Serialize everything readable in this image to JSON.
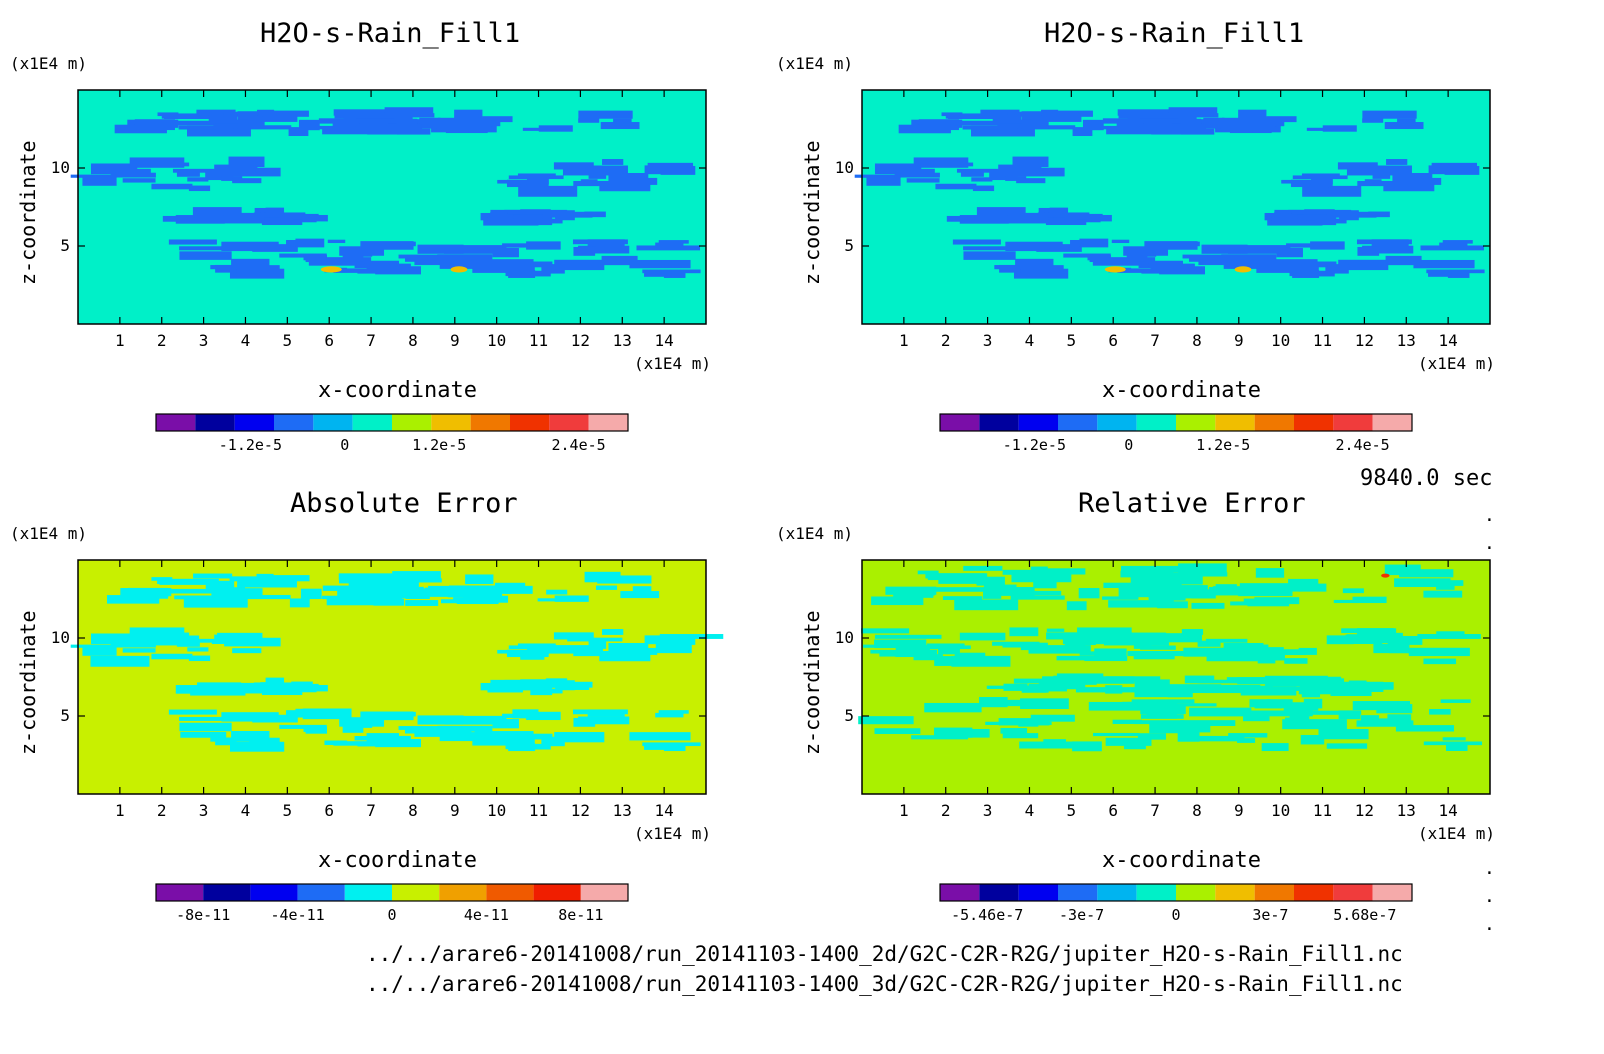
{
  "time_label": "9840.0 sec",
  "file_paths": [
    "../../arare6-20141008/run_20141103-1400_2d/G2C-C2R-R2G/jupiter_H2O-s-Rain_Fill1.nc",
    "../../arare6-20141008/run_20141103-1400_3d/G2C-C2R-R2G/jupiter_H2O-s-Rain_Fill1.nc"
  ],
  "colors": {
    "palette": [
      "#7a0ea8",
      "#00009e",
      "#0000f0",
      "#1e6cf5",
      "#00b4f0",
      "#00f0c8",
      "#aaf000",
      "#f0be00",
      "#f07800",
      "#f03200",
      "#f03c3c",
      "#f5aaaa"
    ],
    "palette_abs": [
      "#7a0ea8",
      "#00009e",
      "#0000f0",
      "#1e6cf5",
      "#00f0f0",
      "#c8f000",
      "#f0a000",
      "#f05a00",
      "#f01e00",
      "#f5aaaa"
    ],
    "patch_blue": "#1ea0f0",
    "patch_cyan": "#00f0f0",
    "field_abs": "#c8f000",
    "field_rel": "#aaf000"
  },
  "chart_data": [
    {
      "type": "heatmap",
      "title": "H2O-s-Rain_Fill1",
      "xlabel": "x-coordinate",
      "ylabel": "z-coordinate",
      "x_unit": "(x1E4 m)",
      "y_unit": "(x1E4 m)",
      "xlim": [
        0,
        15
      ],
      "ylim": [
        0,
        15
      ],
      "xticks": [
        "1",
        "2",
        "3",
        "4",
        "5",
        "6",
        "7",
        "8",
        "9",
        "10",
        "11",
        "12",
        "13",
        "14"
      ],
      "yticks": [
        "5",
        "10"
      ],
      "colorbar_ticks": [
        "-1.2e-5",
        "0",
        "1.2e-5",
        "2.4e-5"
      ],
      "background_color": "#00f0c8",
      "features": [
        {
          "color": "#1e6cf5",
          "x": [
            1.2,
            13.5
          ],
          "z": [
            12.3,
            13.6
          ]
        },
        {
          "color": "#1e6cf5",
          "x": [
            0.3,
            4.5
          ],
          "z": [
            8.5,
            10.5
          ]
        },
        {
          "color": "#1e6cf5",
          "x": [
            10.5,
            14.8
          ],
          "z": [
            8.5,
            10.5
          ]
        },
        {
          "color": "#1e6cf5",
          "x": [
            2.7,
            14.5
          ],
          "z": [
            3.2,
            5.3
          ]
        },
        {
          "color": "#1e6cf5",
          "x": [
            2.5,
            5.5
          ],
          "z": [
            6.5,
            7.2
          ]
        },
        {
          "color": "#1e6cf5",
          "x": [
            9.5,
            12.5
          ],
          "z": [
            6.5,
            7.2
          ]
        },
        {
          "color": "#f0be00",
          "x": [
            5.8,
            6.3
          ],
          "z": [
            3.3,
            3.7
          ]
        },
        {
          "color": "#f0be00",
          "x": [
            8.9,
            9.3
          ],
          "z": [
            3.3,
            3.7
          ]
        }
      ]
    },
    {
      "type": "heatmap",
      "title": "H2O-s-Rain_Fill1",
      "xlabel": "x-coordinate",
      "ylabel": "z-coordinate",
      "x_unit": "(x1E4 m)",
      "y_unit": "(x1E4 m)",
      "xlim": [
        0,
        15
      ],
      "ylim": [
        0,
        15
      ],
      "xticks": [
        "1",
        "2",
        "3",
        "4",
        "5",
        "6",
        "7",
        "8",
        "9",
        "10",
        "11",
        "12",
        "13",
        "14"
      ],
      "yticks": [
        "5",
        "10"
      ],
      "colorbar_ticks": [
        "-1.2e-5",
        "0",
        "1.2e-5",
        "2.4e-5"
      ],
      "background_color": "#00f0c8",
      "features": [
        {
          "color": "#1e6cf5",
          "x": [
            1.2,
            13.5
          ],
          "z": [
            12.3,
            13.6
          ]
        },
        {
          "color": "#1e6cf5",
          "x": [
            0.3,
            4.5
          ],
          "z": [
            8.5,
            10.5
          ]
        },
        {
          "color": "#1e6cf5",
          "x": [
            10.5,
            14.8
          ],
          "z": [
            8.5,
            10.5
          ]
        },
        {
          "color": "#1e6cf5",
          "x": [
            2.7,
            14.5
          ],
          "z": [
            3.2,
            5.3
          ]
        },
        {
          "color": "#1e6cf5",
          "x": [
            2.5,
            5.5
          ],
          "z": [
            6.5,
            7.2
          ]
        },
        {
          "color": "#1e6cf5",
          "x": [
            9.5,
            12.5
          ],
          "z": [
            6.5,
            7.2
          ]
        },
        {
          "color": "#f0be00",
          "x": [
            5.8,
            6.3
          ],
          "z": [
            3.3,
            3.7
          ]
        },
        {
          "color": "#f0be00",
          "x": [
            8.9,
            9.3
          ],
          "z": [
            3.3,
            3.7
          ]
        }
      ]
    },
    {
      "type": "heatmap",
      "title": "Absolute Error",
      "xlabel": "x-coordinate",
      "ylabel": "z-coordinate",
      "x_unit": "(x1E4 m)",
      "y_unit": "(x1E4 m)",
      "xlim": [
        0,
        15
      ],
      "ylim": [
        0,
        15
      ],
      "xticks": [
        "1",
        "2",
        "3",
        "4",
        "5",
        "6",
        "7",
        "8",
        "9",
        "10",
        "11",
        "12",
        "13",
        "14"
      ],
      "yticks": [
        "5",
        "10"
      ],
      "colorbar_ticks": [
        "-8e-11",
        "-4e-11",
        "0",
        "4e-11",
        "8e-11"
      ],
      "background_color": "#c8f000",
      "features": [
        {
          "color": "#00f0f0",
          "x": [
            1.0,
            14.0
          ],
          "z": [
            12.2,
            14.0
          ]
        },
        {
          "color": "#00f0f0",
          "x": [
            0.3,
            4.5
          ],
          "z": [
            8.5,
            10.5
          ]
        },
        {
          "color": "#00f0f0",
          "x": [
            10.5,
            14.8
          ],
          "z": [
            8.5,
            10.5
          ]
        },
        {
          "color": "#00f0f0",
          "x": [
            2.7,
            14.5
          ],
          "z": [
            3.0,
            5.3
          ]
        },
        {
          "color": "#00f0f0",
          "x": [
            2.5,
            5.5
          ],
          "z": [
            6.5,
            7.2
          ]
        },
        {
          "color": "#00f0f0",
          "x": [
            9.5,
            12.5
          ],
          "z": [
            6.5,
            7.2
          ]
        }
      ]
    },
    {
      "type": "heatmap",
      "title": "Relative Error",
      "xlabel": "x-coordinate",
      "ylabel": "z-coordinate",
      "x_unit": "(x1E4 m)",
      "y_unit": "(x1E4 m)",
      "xlim": [
        0,
        15
      ],
      "ylim": [
        0,
        15
      ],
      "xticks": [
        "1",
        "2",
        "3",
        "4",
        "5",
        "6",
        "7",
        "8",
        "9",
        "10",
        "11",
        "12",
        "13",
        "14"
      ],
      "yticks": [
        "5",
        "10"
      ],
      "colorbar_ticks": [
        "-5.46e-7",
        "-3e-7",
        "0",
        "3e-7",
        "5.68e-7"
      ],
      "background_color": "#aaf000",
      "features": [
        {
          "color": "#00f0c8",
          "x": [
            0.5,
            14.5
          ],
          "z": [
            12.0,
            14.5
          ]
        },
        {
          "color": "#00f0c8",
          "x": [
            0.5,
            14.5
          ],
          "z": [
            8.5,
            10.5
          ]
        },
        {
          "color": "#00f0c8",
          "x": [
            0.5,
            14.5
          ],
          "z": [
            3.0,
            6.0
          ]
        },
        {
          "color": "#00f0c8",
          "x": [
            3.5,
            12.0
          ],
          "z": [
            6.5,
            7.5
          ]
        },
        {
          "color": "#f03200",
          "x": [
            12.4,
            12.6
          ],
          "z": [
            13.9,
            14.1
          ]
        }
      ]
    }
  ]
}
